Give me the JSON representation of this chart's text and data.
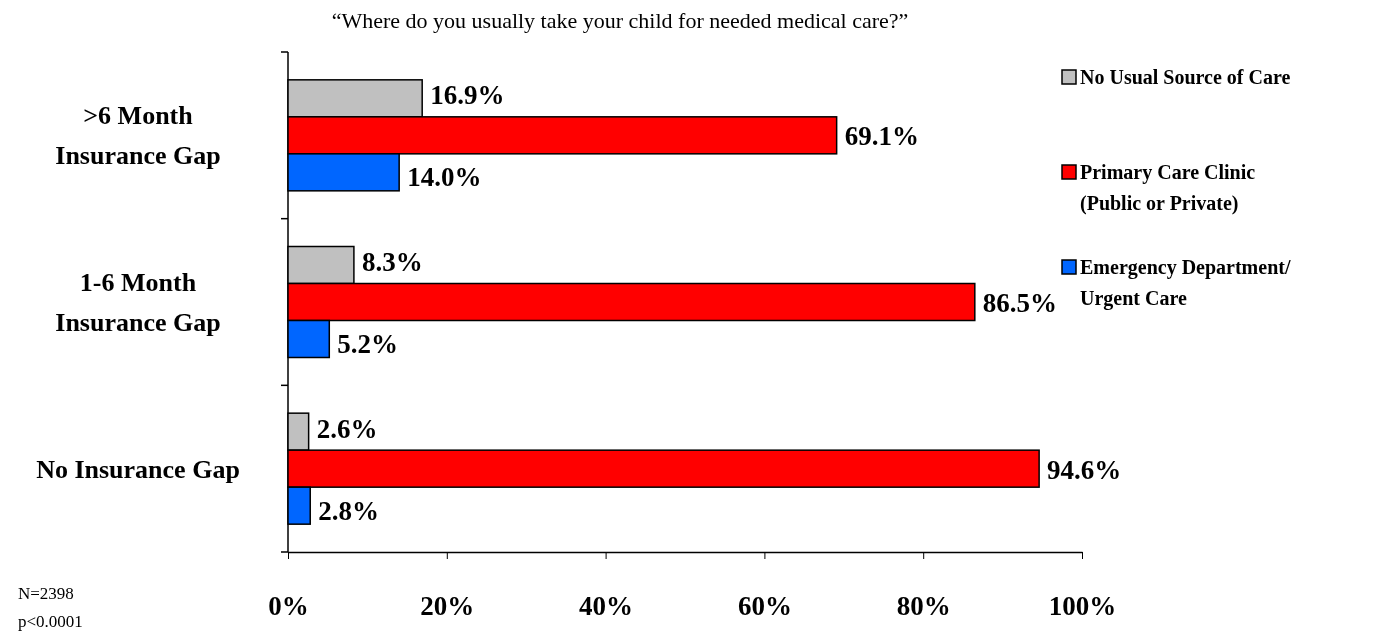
{
  "chart_data": {
    "type": "bar",
    "orientation": "horizontal",
    "title": "“Where do you usually take your child for needed medical care?”",
    "categories": [
      ">6 Month\nInsurance Gap",
      "1-6 Month\nInsurance Gap",
      "No Insurance Gap"
    ],
    "series": [
      {
        "name": "No Usual Source of Care",
        "color": "#c0c0c0",
        "values": [
          16.9,
          8.3,
          2.6
        ],
        "value_labels": [
          "16.9%",
          "8.3%",
          "2.6%"
        ]
      },
      {
        "name": "Primary Care Clinic\n(Public or Private)",
        "color": "#ff0000",
        "values": [
          69.1,
          86.5,
          94.6
        ],
        "value_labels": [
          "69.1%",
          "86.5%",
          "94.6%"
        ]
      },
      {
        "name": "Emergency Department/\nUrgent Care",
        "color": "#0066ff",
        "values": [
          14.0,
          5.2,
          2.8
        ],
        "value_labels": [
          "14.0%",
          "5.2%",
          "2.8%"
        ]
      }
    ],
    "xlim": [
      0,
      100
    ],
    "xticks": [
      {
        "value": 0,
        "label": "0%"
      },
      {
        "value": 20,
        "label": "20%"
      },
      {
        "value": 40,
        "label": "40%"
      },
      {
        "value": 60,
        "label": "60%"
      },
      {
        "value": 80,
        "label": "80%"
      },
      {
        "value": 100,
        "label": "100%"
      }
    ],
    "grid": false,
    "legend": "right",
    "annotations": [
      "N=2398",
      "p<0.0001"
    ]
  }
}
